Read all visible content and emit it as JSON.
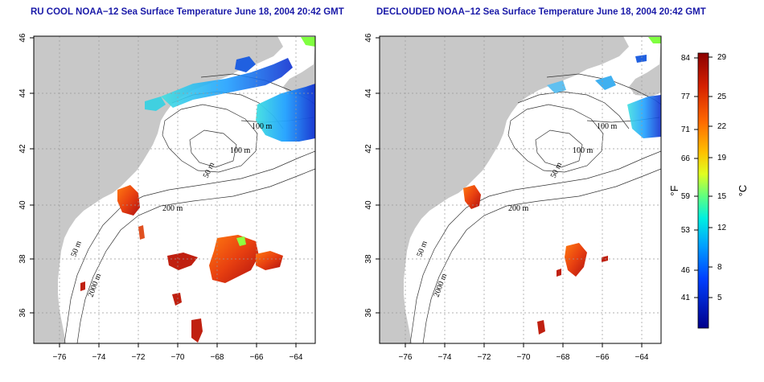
{
  "maps": [
    {
      "title": "RU COOL NOAA−12 Sea Surface Temperature June 18, 2004 20:42 GMT"
    },
    {
      "title": "DECLOUDED NOAA−12 Sea Surface Temperature June 18, 2004 20:42 GMT"
    }
  ],
  "axes": {
    "x_ticks": [
      "−76",
      "−74",
      "−72",
      "−70",
      "−68",
      "−66",
      "−64"
    ],
    "y_ticks": [
      "36",
      "38",
      "40",
      "42",
      "44",
      "46"
    ]
  },
  "contour_labels": {
    "c100a": "100 m",
    "c100b": "100 m",
    "c50a": "50 m",
    "c50b": "50 m",
    "c200": "200 m",
    "c2000": "2000 m"
  },
  "colorbar": {
    "fahrenheit_label": "°F",
    "celsius_label": "°C",
    "fahrenheit_ticks": [
      "84",
      "77",
      "71",
      "66",
      "59",
      "53",
      "46",
      "41"
    ],
    "celsius_ticks": [
      "29",
      "25",
      "22",
      "19",
      "15",
      "12",
      "8",
      "5"
    ]
  },
  "colors": {
    "land": "#c8c8c8",
    "ocean": "#ffffff",
    "title": "#1a1aa8",
    "gradient_top": "#8b0000",
    "gradient_bottom": "#00008b"
  }
}
